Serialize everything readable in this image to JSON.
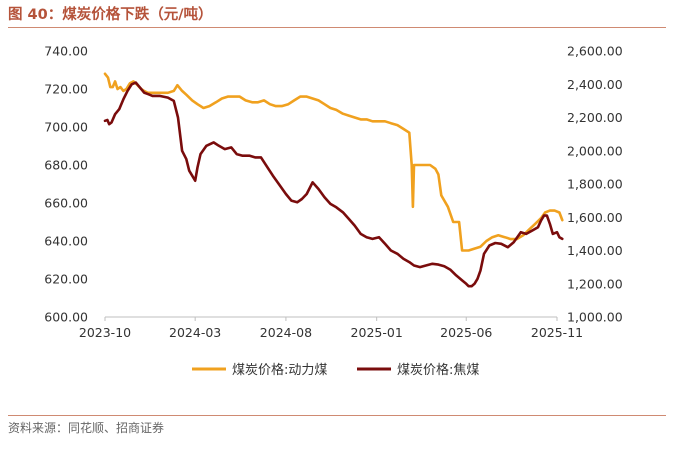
{
  "figure": {
    "title": "图 40：煤炭价格下跌（元/吨）",
    "source": "资料来源：同花顺、招商证券"
  },
  "chart_data": {
    "type": "line",
    "title": "图 40：煤炭价格下跌（元/吨）",
    "x_ticks": [
      "2023-10",
      "2024-03",
      "2024-08",
      "2025-01",
      "2025-06",
      "2025-11"
    ],
    "y_left": {
      "lim": [
        600,
        740
      ],
      "ticks": [
        "600.00",
        "620.00",
        "640.00",
        "660.00",
        "680.00",
        "700.00",
        "720.00",
        "740.00"
      ]
    },
    "y_right": {
      "lim": [
        1000,
        2600
      ],
      "ticks": [
        "1,000.00",
        "1,200.00",
        "1,400.00",
        "1,600.00",
        "1,800.00",
        "2,000.00",
        "2,200.00",
        "2,400.00",
        "2,600.00"
      ]
    },
    "grid": false,
    "legend_position": "bottom",
    "series": [
      {
        "name": "煤炭价格:动力煤",
        "axis": "left",
        "color": "#f0a11f",
        "x": [
          "2023-10-01",
          "2023-10-06",
          "2023-10-10",
          "2023-10-14",
          "2023-10-18",
          "2023-10-22",
          "2023-10-27",
          "2023-11-01",
          "2023-11-06",
          "2023-11-12",
          "2023-11-18",
          "2023-11-25",
          "2023-12-01",
          "2023-12-06",
          "2023-12-12",
          "2023-12-20",
          "2024-01-01",
          "2024-01-15",
          "2024-01-25",
          "2024-01-31",
          "2024-02-08",
          "2024-02-15",
          "2024-02-25",
          "2024-03-05",
          "2024-03-15",
          "2024-03-25",
          "2024-04-05",
          "2024-04-15",
          "2024-04-25",
          "2024-05-05",
          "2024-05-15",
          "2024-05-25",
          "2024-06-05",
          "2024-06-15",
          "2024-06-25",
          "2024-07-05",
          "2024-07-15",
          "2024-07-25",
          "2024-08-05",
          "2024-08-15",
          "2024-08-25",
          "2024-09-05",
          "2024-09-15",
          "2024-09-25",
          "2024-10-05",
          "2024-10-15",
          "2024-10-25",
          "2024-11-05",
          "2024-11-15",
          "2024-11-25",
          "2024-12-05",
          "2024-12-15",
          "2024-12-25",
          "2025-01-05",
          "2025-01-15",
          "2025-01-25",
          "2025-02-05",
          "2025-02-15",
          "2025-02-25",
          "2025-03-01",
          "2025-03-03",
          "2025-03-05",
          "2025-03-10",
          "2025-03-20",
          "2025-04-01",
          "2025-04-10",
          "2025-04-15",
          "2025-04-20",
          "2025-05-01",
          "2025-05-10",
          "2025-05-20",
          "2025-05-25",
          "2025-06-05",
          "2025-06-15",
          "2025-06-25",
          "2025-07-05",
          "2025-07-15",
          "2025-07-25",
          "2025-08-05",
          "2025-08-15",
          "2025-08-25",
          "2025-09-05",
          "2025-09-15",
          "2025-09-25",
          "2025-10-05",
          "2025-10-12",
          "2025-10-20",
          "2025-10-28",
          "2025-11-05",
          "2025-11-10"
        ],
        "values": [
          728,
          726,
          721,
          721,
          724,
          720,
          721,
          719,
          720,
          723,
          724,
          722,
          720,
          719,
          718,
          718,
          718,
          718,
          719,
          722,
          719,
          717,
          714,
          712,
          710,
          711,
          713,
          715,
          716,
          716,
          716,
          714,
          713,
          713,
          714,
          712,
          711,
          711,
          712,
          714,
          716,
          716,
          715,
          714,
          712,
          710,
          709,
          707,
          706,
          705,
          704,
          704,
          703,
          703,
          703,
          702,
          701,
          699,
          697,
          680,
          658,
          680,
          680,
          680,
          680,
          678,
          675,
          664,
          658,
          650,
          650,
          635,
          635,
          636,
          637,
          640,
          642,
          643,
          642,
          641,
          641,
          643,
          646,
          649,
          652,
          655,
          656,
          656,
          655,
          651
        ]
      },
      {
        "name": "煤炭价格:焦煤",
        "axis": "right",
        "color": "#7a0c0c",
        "x": [
          "2023-10-01",
          "2023-10-05",
          "2023-10-08",
          "2023-10-12",
          "2023-10-18",
          "2023-10-25",
          "2023-11-01",
          "2023-11-08",
          "2023-11-15",
          "2023-11-22",
          "2023-11-29",
          "2023-12-06",
          "2023-12-13",
          "2023-12-20",
          "2024-01-01",
          "2024-01-15",
          "2024-01-25",
          "2024-02-01",
          "2024-02-08",
          "2024-02-15",
          "2024-02-20",
          "2024-02-25",
          "2024-03-01",
          "2024-03-05",
          "2024-03-10",
          "2024-03-20",
          "2024-04-01",
          "2024-04-10",
          "2024-04-20",
          "2024-05-01",
          "2024-05-10",
          "2024-05-20",
          "2024-06-01",
          "2024-06-10",
          "2024-06-20",
          "2024-07-01",
          "2024-07-10",
          "2024-07-20",
          "2024-08-01",
          "2024-08-10",
          "2024-08-20",
          "2024-08-28",
          "2024-09-05",
          "2024-09-15",
          "2024-09-25",
          "2024-10-05",
          "2024-10-15",
          "2024-10-25",
          "2024-11-05",
          "2024-11-15",
          "2024-11-25",
          "2024-12-05",
          "2024-12-15",
          "2024-12-25",
          "2025-01-05",
          "2025-01-15",
          "2025-01-25",
          "2025-02-05",
          "2025-02-15",
          "2025-02-25",
          "2025-03-05",
          "2025-03-15",
          "2025-03-25",
          "2025-04-05",
          "2025-04-15",
          "2025-04-25",
          "2025-05-05",
          "2025-05-15",
          "2025-05-25",
          "2025-06-01",
          "2025-06-05",
          "2025-06-10",
          "2025-06-15",
          "2025-06-20",
          "2025-06-25",
          "2025-07-01",
          "2025-07-10",
          "2025-07-20",
          "2025-07-30",
          "2025-08-10",
          "2025-08-20",
          "2025-09-01",
          "2025-09-10",
          "2025-09-20",
          "2025-09-30",
          "2025-10-05",
          "2025-10-10",
          "2025-10-15",
          "2025-10-20",
          "2025-10-25",
          "2025-11-01",
          "2025-11-05",
          "2025-11-10"
        ],
        "values": [
          2180,
          2185,
          2160,
          2170,
          2220,
          2250,
          2310,
          2360,
          2400,
          2410,
          2380,
          2350,
          2340,
          2330,
          2330,
          2320,
          2300,
          2200,
          2000,
          1950,
          1880,
          1850,
          1820,
          1900,
          1980,
          2030,
          2050,
          2030,
          2010,
          2020,
          1980,
          1970,
          1970,
          1960,
          1960,
          1900,
          1850,
          1800,
          1740,
          1700,
          1690,
          1710,
          1740,
          1810,
          1770,
          1720,
          1680,
          1660,
          1630,
          1590,
          1550,
          1500,
          1480,
          1470,
          1480,
          1440,
          1400,
          1380,
          1350,
          1330,
          1310,
          1300,
          1310,
          1320,
          1315,
          1305,
          1285,
          1250,
          1220,
          1200,
          1185,
          1185,
          1200,
          1230,
          1280,
          1380,
          1430,
          1445,
          1440,
          1420,
          1450,
          1510,
          1500,
          1520,
          1540,
          1580,
          1610,
          1610,
          1560,
          1500,
          1510,
          1480,
          1470
        ]
      }
    ]
  }
}
